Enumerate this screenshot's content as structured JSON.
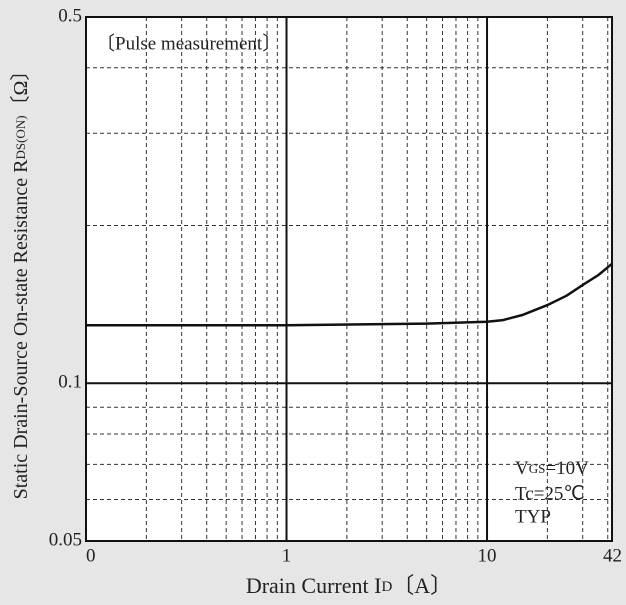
{
  "chart_data": {
    "type": "line",
    "x_label": {
      "main": "Drain Current  I",
      "sub": "D",
      "unit": "〔A〕"
    },
    "y_label": {
      "main": "Static Drain-Source On-state Resistance  R",
      "sub": "DS(ON)",
      "unit": "〔Ω〕"
    },
    "annotations": {
      "pulse": "〔Pulse measurement〕",
      "vgs_main": "V",
      "vgs_sub": "GS",
      "vgs_val": "=10V",
      "tc": "Tc=25℃",
      "typ": "TYP"
    },
    "log_x": true,
    "log_y": true,
    "grid": true,
    "xlim": [
      0.1,
      42
    ],
    "ylim": [
      0.05,
      0.5
    ],
    "xticks": [
      {
        "value": 0.1,
        "label": "0"
      },
      1,
      10,
      42
    ],
    "yticks": [
      0.05,
      0.1,
      0.5
    ],
    "minor_xticks": [
      0.2,
      0.3,
      0.4,
      0.5,
      0.6,
      0.7,
      0.8,
      0.9,
      2,
      3,
      4,
      5,
      6,
      7,
      8,
      9,
      20,
      30,
      40
    ],
    "minor_yticks": [
      0.06,
      0.07,
      0.08,
      0.09,
      0.2,
      0.3,
      0.4
    ],
    "series": [
      {
        "color": "#111111",
        "x": [
          0.1,
          1,
          5,
          10,
          12,
          15,
          20,
          25,
          30,
          36,
          42
        ],
        "values": [
          0.129,
          0.129,
          0.13,
          0.131,
          0.132,
          0.135,
          0.141,
          0.147,
          0.154,
          0.161,
          0.169
        ]
      }
    ]
  }
}
